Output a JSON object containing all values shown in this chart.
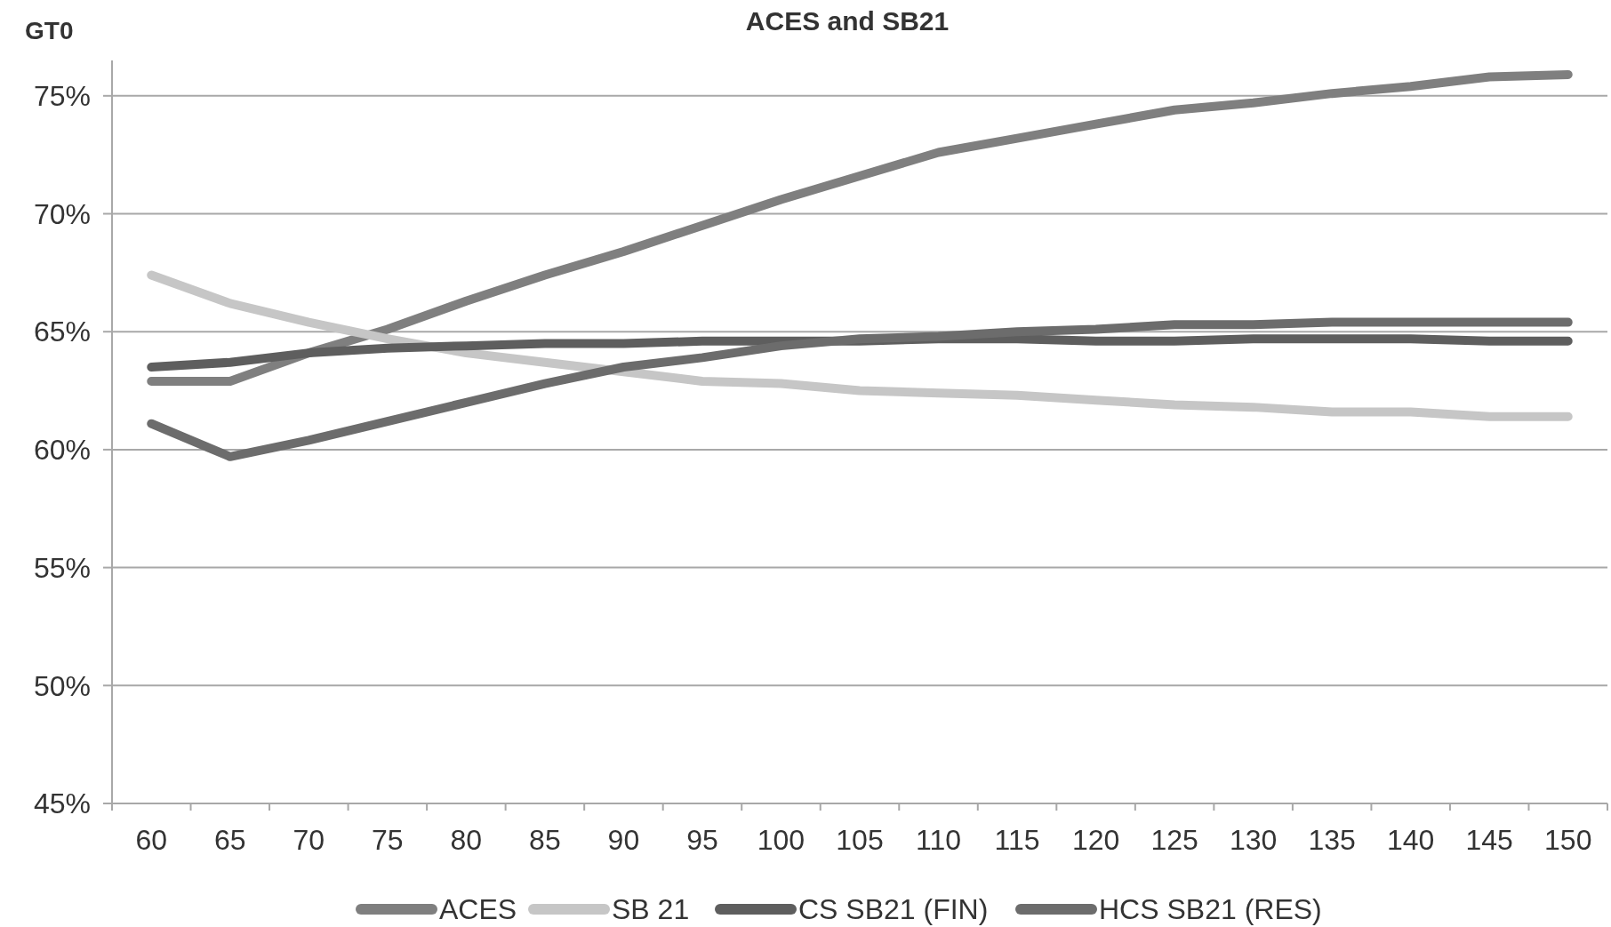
{
  "chart_data": {
    "type": "line",
    "title": "ACES and SB21",
    "ylabel": "GT0",
    "categories": [
      "60",
      "65",
      "70",
      "75",
      "80",
      "85",
      "90",
      "95",
      "100",
      "105",
      "110",
      "115",
      "120",
      "125",
      "130",
      "135",
      "140",
      "145",
      "150"
    ],
    "series": [
      {
        "name": "ACES",
        "color": "#7f7f7f",
        "values": [
          62.9,
          62.9,
          64.1,
          65.1,
          66.3,
          67.4,
          68.4,
          69.5,
          70.6,
          71.6,
          72.6,
          73.2,
          73.8,
          74.4,
          74.7,
          75.1,
          75.4,
          75.8,
          75.9
        ]
      },
      {
        "name": "SB 21",
        "color": "#c6c6c6",
        "values": [
          67.4,
          66.2,
          65.4,
          64.7,
          64.1,
          63.7,
          63.3,
          62.9,
          62.8,
          62.5,
          62.4,
          62.3,
          62.1,
          61.9,
          61.8,
          61.6,
          61.6,
          61.4,
          61.4
        ]
      },
      {
        "name": "CS SB21 (FIN)",
        "color": "#5e5e5e",
        "values": [
          63.5,
          63.7,
          64.1,
          64.3,
          64.4,
          64.5,
          64.5,
          64.6,
          64.6,
          64.6,
          64.7,
          64.7,
          64.6,
          64.6,
          64.7,
          64.7,
          64.7,
          64.6,
          64.6
        ]
      },
      {
        "name": "HCS SB21 (RES)",
        "color": "#6c6c6c",
        "values": [
          61.1,
          59.7,
          60.4,
          61.2,
          62.0,
          62.8,
          63.5,
          63.9,
          64.4,
          64.7,
          64.8,
          65.0,
          65.1,
          65.3,
          65.3,
          65.4,
          65.4,
          65.4,
          65.4
        ]
      }
    ],
    "ylim": [
      45,
      76.5
    ],
    "yticks": [
      {
        "value": 45,
        "label": "45%"
      },
      {
        "value": 50,
        "label": "50%"
      },
      {
        "value": 55,
        "label": "55%"
      },
      {
        "value": 60,
        "label": "60%"
      },
      {
        "value": 65,
        "label": "65%"
      },
      {
        "value": 70,
        "label": "70%"
      },
      {
        "value": 75,
        "label": "75%"
      }
    ],
    "grid": "y",
    "legend": "bottom",
    "marker": "none",
    "line_style": "solid"
  }
}
